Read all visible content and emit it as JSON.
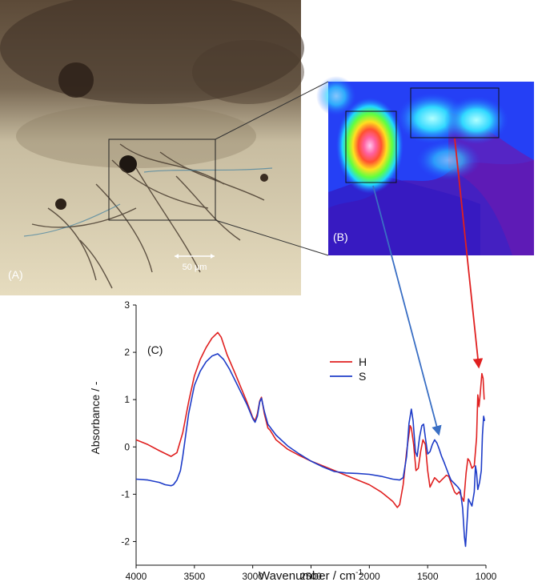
{
  "panels": {
    "a_label": "(A)",
    "b_label": "(B)",
    "c_label": "(C)",
    "scale_bar_label": "50 µm"
  },
  "chart_data": {
    "type": "line",
    "xlabel": "Wavenumber / cm",
    "xlabel_sup": "-1",
    "ylabel": "Absorbance / -",
    "xlim": [
      4000,
      1000
    ],
    "ylim": [
      -2.5,
      3
    ],
    "xticks": [
      4000,
      3500,
      3000,
      2500,
      2000,
      1500,
      1000
    ],
    "yticks": [
      -2,
      -1,
      0,
      1,
      2,
      3
    ],
    "legend_position": "center-right",
    "series": [
      {
        "name": "H",
        "color": "#e02020",
        "points": [
          [
            4000,
            0.15
          ],
          [
            3900,
            0.05
          ],
          [
            3800,
            -0.08
          ],
          [
            3700,
            -0.2
          ],
          [
            3650,
            -0.12
          ],
          [
            3600,
            0.3
          ],
          [
            3550,
            0.95
          ],
          [
            3500,
            1.5
          ],
          [
            3450,
            1.85
          ],
          [
            3400,
            2.1
          ],
          [
            3350,
            2.3
          ],
          [
            3300,
            2.42
          ],
          [
            3270,
            2.32
          ],
          [
            3220,
            1.95
          ],
          [
            3150,
            1.55
          ],
          [
            3100,
            1.25
          ],
          [
            3050,
            0.95
          ],
          [
            3000,
            0.62
          ],
          [
            2980,
            0.55
          ],
          [
            2960,
            0.7
          ],
          [
            2940,
            0.97
          ],
          [
            2925,
            1.05
          ],
          [
            2900,
            0.7
          ],
          [
            2870,
            0.4
          ],
          [
            2850,
            0.35
          ],
          [
            2800,
            0.15
          ],
          [
            2700,
            -0.05
          ],
          [
            2600,
            -0.18
          ],
          [
            2500,
            -0.3
          ],
          [
            2400,
            -0.4
          ],
          [
            2300,
            -0.5
          ],
          [
            2200,
            -0.6
          ],
          [
            2100,
            -0.7
          ],
          [
            2000,
            -0.8
          ],
          [
            1900,
            -0.95
          ],
          [
            1850,
            -1.05
          ],
          [
            1800,
            -1.15
          ],
          [
            1760,
            -1.28
          ],
          [
            1740,
            -1.22
          ],
          [
            1710,
            -0.8
          ],
          [
            1680,
            -0.1
          ],
          [
            1650,
            0.45
          ],
          [
            1640,
            0.4
          ],
          [
            1620,
            0.05
          ],
          [
            1600,
            -0.5
          ],
          [
            1580,
            -0.45
          ],
          [
            1560,
            -0.1
          ],
          [
            1540,
            0.15
          ],
          [
            1520,
            0.05
          ],
          [
            1500,
            -0.5
          ],
          [
            1480,
            -0.85
          ],
          [
            1460,
            -0.75
          ],
          [
            1440,
            -0.65
          ],
          [
            1420,
            -0.7
          ],
          [
            1400,
            -0.75
          ],
          [
            1380,
            -0.7
          ],
          [
            1360,
            -0.65
          ],
          [
            1340,
            -0.6
          ],
          [
            1320,
            -0.62
          ],
          [
            1300,
            -0.75
          ],
          [
            1270,
            -0.95
          ],
          [
            1250,
            -1.0
          ],
          [
            1230,
            -0.95
          ],
          [
            1210,
            -1.05
          ],
          [
            1190,
            -1.15
          ],
          [
            1170,
            -0.55
          ],
          [
            1155,
            -0.25
          ],
          [
            1140,
            -0.3
          ],
          [
            1120,
            -0.45
          ],
          [
            1100,
            -0.4
          ],
          [
            1080,
            0.2
          ],
          [
            1070,
            1.1
          ],
          [
            1060,
            0.85
          ],
          [
            1050,
            1.1
          ],
          [
            1035,
            1.55
          ],
          [
            1025,
            1.45
          ],
          [
            1015,
            1.0
          ]
        ]
      },
      {
        "name": "S",
        "color": "#1e3cc8",
        "points": [
          [
            4000,
            -0.68
          ],
          [
            3900,
            -0.7
          ],
          [
            3800,
            -0.75
          ],
          [
            3750,
            -0.8
          ],
          [
            3700,
            -0.82
          ],
          [
            3680,
            -0.8
          ],
          [
            3650,
            -0.7
          ],
          [
            3620,
            -0.5
          ],
          [
            3600,
            -0.2
          ],
          [
            3550,
            0.7
          ],
          [
            3500,
            1.3
          ],
          [
            3450,
            1.6
          ],
          [
            3400,
            1.8
          ],
          [
            3350,
            1.92
          ],
          [
            3300,
            1.97
          ],
          [
            3250,
            1.85
          ],
          [
            3200,
            1.65
          ],
          [
            3150,
            1.4
          ],
          [
            3100,
            1.15
          ],
          [
            3050,
            0.9
          ],
          [
            3000,
            0.6
          ],
          [
            2980,
            0.52
          ],
          [
            2960,
            0.65
          ],
          [
            2940,
            0.95
          ],
          [
            2925,
            1.03
          ],
          [
            2900,
            0.75
          ],
          [
            2870,
            0.48
          ],
          [
            2800,
            0.25
          ],
          [
            2700,
            0.02
          ],
          [
            2600,
            -0.15
          ],
          [
            2500,
            -0.3
          ],
          [
            2400,
            -0.42
          ],
          [
            2300,
            -0.52
          ],
          [
            2200,
            -0.55
          ],
          [
            2100,
            -0.56
          ],
          [
            2000,
            -0.58
          ],
          [
            1900,
            -0.62
          ],
          [
            1800,
            -0.68
          ],
          [
            1740,
            -0.7
          ],
          [
            1710,
            -0.65
          ],
          [
            1680,
            -0.2
          ],
          [
            1660,
            0.5
          ],
          [
            1640,
            0.8
          ],
          [
            1625,
            0.55
          ],
          [
            1605,
            -0.1
          ],
          [
            1590,
            -0.2
          ],
          [
            1570,
            0.2
          ],
          [
            1550,
            0.45
          ],
          [
            1535,
            0.48
          ],
          [
            1520,
            0.2
          ],
          [
            1500,
            -0.15
          ],
          [
            1480,
            -0.1
          ],
          [
            1460,
            0.05
          ],
          [
            1440,
            0.15
          ],
          [
            1420,
            0.08
          ],
          [
            1400,
            -0.05
          ],
          [
            1380,
            -0.2
          ],
          [
            1360,
            -0.32
          ],
          [
            1340,
            -0.45
          ],
          [
            1320,
            -0.58
          ],
          [
            1300,
            -0.7
          ],
          [
            1280,
            -0.75
          ],
          [
            1260,
            -0.8
          ],
          [
            1240,
            -0.85
          ],
          [
            1220,
            -0.92
          ],
          [
            1200,
            -1.3
          ],
          [
            1185,
            -1.9
          ],
          [
            1175,
            -2.1
          ],
          [
            1165,
            -1.7
          ],
          [
            1150,
            -1.1
          ],
          [
            1140,
            -1.15
          ],
          [
            1120,
            -1.25
          ],
          [
            1100,
            -0.95
          ],
          [
            1090,
            -0.4
          ],
          [
            1080,
            -0.55
          ],
          [
            1070,
            -0.9
          ],
          [
            1055,
            -0.75
          ],
          [
            1040,
            -0.5
          ],
          [
            1030,
            0.25
          ],
          [
            1020,
            0.65
          ],
          [
            1012,
            0.55
          ]
        ]
      }
    ]
  }
}
